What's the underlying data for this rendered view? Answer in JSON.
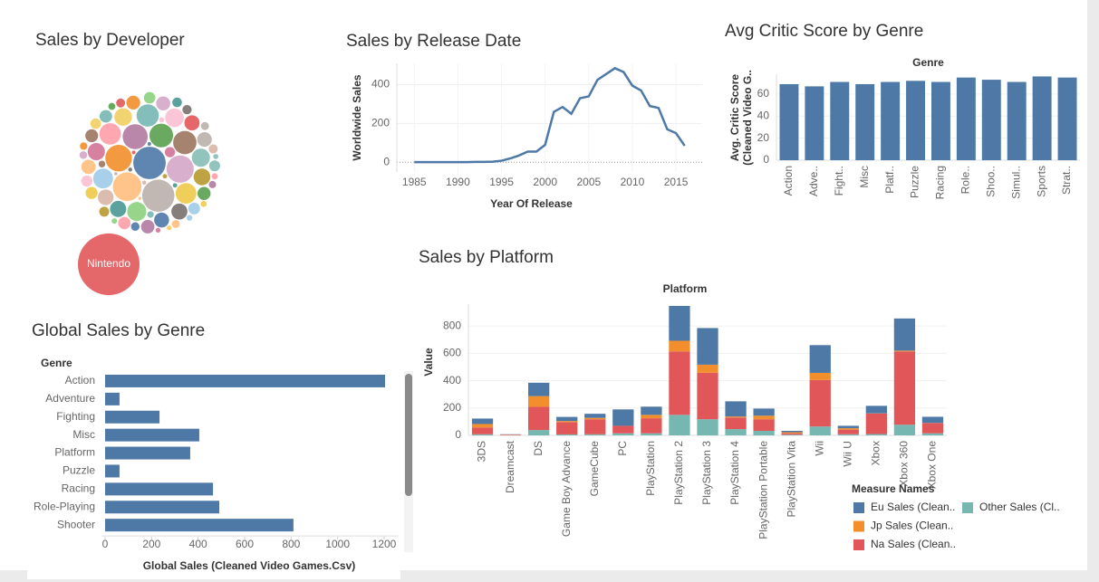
{
  "chart_data": [
    {
      "type": "bubble",
      "title": "Sales by Developer",
      "labels": [
        "Nintendo",
        null,
        null,
        null,
        null,
        null,
        null,
        null,
        null,
        null,
        null,
        null,
        null,
        null,
        null,
        null,
        null,
        null,
        null,
        null,
        null,
        null,
        null,
        null,
        null,
        null,
        null,
        null,
        null,
        null,
        null,
        null,
        null,
        null,
        null,
        null,
        null,
        null,
        null,
        null,
        null,
        null,
        null,
        null,
        null,
        null,
        null,
        null,
        null,
        null,
        null,
        null,
        null,
        null,
        null,
        null,
        null,
        null,
        null,
        null,
        null,
        null,
        null,
        null,
        null,
        null,
        null,
        null,
        null,
        null
      ],
      "values": [
        1150,
        320,
        315,
        250,
        225,
        215,
        190,
        170,
        165,
        150,
        140,
        130,
        120,
        110,
        105,
        100,
        95,
        90,
        85,
        80,
        78,
        75,
        70,
        68,
        65,
        62,
        60,
        58,
        55,
        52,
        50,
        48,
        46,
        44,
        42,
        40,
        38,
        36,
        34,
        32,
        30,
        28,
        26,
        25,
        24,
        22,
        20,
        19,
        18,
        17,
        16,
        15,
        14,
        13,
        12,
        11,
        10,
        9,
        8,
        8,
        7,
        7,
        6,
        6,
        5,
        5,
        4,
        4,
        3,
        3
      ],
      "palette": [
        "#e15759",
        "#4e79a7",
        "#bab0ac",
        "#ffbe7d",
        "#d4a6c8",
        "#f28e2b",
        "#b07aa1",
        "#59a14f",
        "#9c755f",
        "#76b7b2",
        "#ff9da7",
        "#edc948",
        "#a0cbe8",
        "#8cd17d",
        "#fabfd2",
        "#86bcb6",
        "#f1ce63",
        "#d37295",
        "#b6992d",
        "#499894",
        "#79706e",
        "#d7b5a6"
      ]
    },
    {
      "type": "line",
      "title": "Sales by Release Date",
      "x_label": "Year Of Release",
      "y_label": "Worldwide Sales",
      "x": [
        1985,
        1986,
        1987,
        1988,
        1989,
        1990,
        1991,
        1992,
        1993,
        1994,
        1995,
        1996,
        1997,
        1998,
        1999,
        2000,
        2001,
        2002,
        2003,
        2004,
        2005,
        2006,
        2007,
        2008,
        2009,
        2010,
        2011,
        2012,
        2013,
        2014,
        2015,
        2016
      ],
      "values": [
        1,
        1,
        1,
        1,
        1,
        1,
        1,
        2,
        2,
        3,
        8,
        20,
        35,
        55,
        55,
        90,
        260,
        285,
        250,
        330,
        340,
        425,
        455,
        485,
        465,
        395,
        370,
        290,
        280,
        170,
        150,
        85
      ],
      "color": "#4e79a7",
      "xlim": [
        1983,
        2018
      ],
      "ylim": [
        -50,
        510
      ],
      "xticks": [
        1985,
        1990,
        1995,
        2000,
        2005,
        2010,
        2015
      ],
      "yticks": [
        0,
        200,
        400
      ],
      "grid": true
    },
    {
      "type": "bar",
      "title": "Avg Critic Score by Genre",
      "header": "Genre",
      "y_label": [
        "Avg. Critic Score",
        "(Cleaned Video G.."
      ],
      "categories": [
        "Action",
        "Adve..",
        "Fight..",
        "Misc",
        "Platf..",
        "Puzzle",
        "Racing",
        "Role..",
        "Shoo..",
        "Simul..",
        "Sports",
        "Strat.."
      ],
      "values": [
        69,
        67,
        71,
        69,
        71,
        72,
        71,
        75,
        73,
        71,
        76,
        75
      ],
      "color": "#4e79a7",
      "ylim": [
        0,
        78
      ],
      "yticks": [
        0,
        20,
        40,
        60
      ]
    },
    {
      "type": "bar",
      "orientation": "horizontal",
      "title": "Global Sales by Genre",
      "header": "Genre",
      "x_label": "Global Sales (Cleaned Video Games.Csv)",
      "categories": [
        "Action",
        "Adventure",
        "Fighting",
        "Misc",
        "Platform",
        "Puzzle",
        "Racing",
        "Role-Playing",
        "Shooter"
      ],
      "values": [
        1204,
        62,
        234,
        405,
        366,
        62,
        464,
        491,
        810
      ],
      "color": "#4e79a7",
      "xlim": [
        0,
        1260
      ],
      "xticks": [
        0,
        200,
        400,
        600,
        800,
        1000,
        1200
      ]
    },
    {
      "type": "bar",
      "stacked": true,
      "title": "Sales by Platform",
      "header": "Platform",
      "y_label": "Value",
      "legend_title": "Measure Names",
      "categories": [
        "3DS",
        "Dreamcast",
        "DS",
        "Game Boy Advance",
        "GameCube",
        "PC",
        "PlayStation",
        "PlayStation 2",
        "PlayStation 3",
        "PlayStation 4",
        "PlayStation Portable",
        "PlayStation Vita",
        "Wii",
        "Wii U",
        "Xbox",
        "Xbox 360",
        "Xbox One"
      ],
      "series": [
        {
          "name": "Eu Sales (Clean..",
          "color": "#4e79a7",
          "values": [
            40,
            2,
            98,
            30,
            30,
            120,
            60,
            255,
            268,
            111,
            52,
            10,
            203,
            18,
            55,
            235,
            45
          ]
        },
        {
          "name": "Jp Sales (Clean..",
          "color": "#f28e2b",
          "values": [
            25,
            1,
            78,
            8,
            10,
            0,
            25,
            78,
            59,
            7,
            26,
            8,
            52,
            10,
            1,
            6,
            1
          ]
        },
        {
          "name": "Na Sales (Clean..",
          "color": "#e15759",
          "values": [
            50,
            4,
            170,
            90,
            110,
            55,
            110,
            464,
            340,
            85,
            85,
            10,
            340,
            34,
            150,
            536,
            75
          ]
        },
        {
          "name": "Other Sales (Cl..",
          "color": "#76b7b2",
          "values": [
            8,
            1,
            39,
            7,
            8,
            15,
            15,
            150,
            118,
            46,
            33,
            5,
            65,
            8,
            10,
            78,
            15
          ]
        }
      ],
      "ylim": [
        0,
        960
      ],
      "yticks": [
        0,
        200,
        400,
        600,
        800
      ]
    }
  ]
}
